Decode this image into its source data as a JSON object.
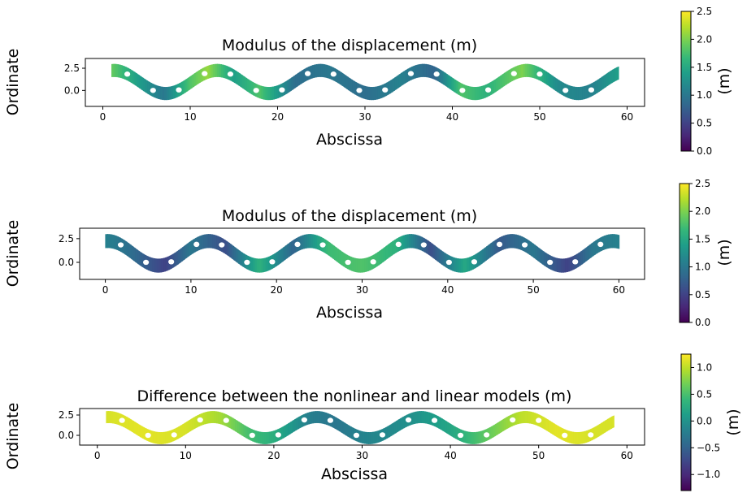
{
  "colormap": {
    "name": "viridis",
    "stops": [
      "#440154",
      "#482878",
      "#3e4989",
      "#31688e",
      "#26828e",
      "#1f9e89",
      "#35b779",
      "#6ece58",
      "#b5de2b",
      "#fde725"
    ]
  },
  "chart_data": [
    {
      "type": "heatmap",
      "title": "Modulus of the displacement (m)",
      "xlabel": "Abscissa",
      "ylabel": "Ordinate",
      "xlim": [
        -2,
        62
      ],
      "ylim": [
        -1.8,
        3.6
      ],
      "xticks": [
        0,
        10,
        20,
        30,
        40,
        50,
        60
      ],
      "yticks": [
        0.0,
        2.5
      ],
      "xtick_labels": [
        "0",
        "10",
        "20",
        "30",
        "40",
        "50",
        "60"
      ],
      "ytick_labels": [
        "0.0",
        "2.5"
      ],
      "colorbar": {
        "label": "(m)",
        "min": 0.0,
        "max": 2.5,
        "ticks": [
          0.0,
          0.5,
          1.0,
          1.5,
          2.0,
          2.5
        ],
        "tick_labels": [
          "0.0",
          "0.5",
          "1.0",
          "1.5",
          "2.0",
          "2.5"
        ]
      },
      "beam_x_range": [
        1,
        59
      ],
      "field_profile": {
        "x": [
          1,
          4,
          7,
          10,
          12,
          15,
          18,
          22,
          26,
          30,
          34,
          38,
          41,
          44,
          48,
          52,
          56,
          59
        ],
        "value": [
          1.9,
          1.4,
          1.0,
          1.8,
          2.1,
          1.4,
          1.8,
          0.9,
          1.0,
          0.9,
          1.1,
          0.8,
          1.8,
          1.6,
          2.0,
          1.2,
          1.1,
          1.4
        ]
      }
    },
    {
      "type": "heatmap",
      "title": "Modulus of the displacement (m)",
      "xlabel": "Abscissa",
      "ylabel": "Ordinate",
      "xlim": [
        -3,
        63
      ],
      "ylim": [
        -1.8,
        3.6
      ],
      "xticks": [
        0,
        10,
        20,
        30,
        40,
        50,
        60
      ],
      "yticks": [
        0.0,
        2.5
      ],
      "xtick_labels": [
        "0",
        "10",
        "20",
        "30",
        "40",
        "50",
        "60"
      ],
      "ytick_labels": [
        "0.0",
        "2.5"
      ],
      "colorbar": {
        "label": "(m)",
        "min": 0.0,
        "max": 2.5,
        "ticks": [
          0.0,
          0.5,
          1.0,
          1.5,
          2.0,
          2.5
        ],
        "tick_labels": [
          "0.0",
          "0.5",
          "1.0",
          "1.5",
          "2.0",
          "2.5"
        ]
      },
      "beam_x_range": [
        0,
        60
      ],
      "field_profile": {
        "x": [
          0,
          3,
          7,
          10,
          14,
          18,
          22,
          26,
          30,
          34,
          38,
          42,
          46,
          50,
          54,
          57,
          60
        ],
        "value": [
          1.1,
          0.9,
          0.5,
          1.0,
          0.6,
          1.6,
          0.8,
          1.7,
          1.8,
          1.6,
          0.6,
          1.5,
          0.7,
          1.0,
          0.5,
          1.0,
          1.1
        ]
      }
    },
    {
      "type": "heatmap",
      "title": "Difference between the nonlinear and linear models (m)",
      "xlabel": "Abscissa",
      "ylabel": "Ordinate",
      "xlim": [
        -2,
        62
      ],
      "ylim": [
        -1.2,
        3.3
      ],
      "xticks": [
        0,
        10,
        20,
        30,
        40,
        50,
        60
      ],
      "yticks": [
        0.0,
        2.5
      ],
      "xtick_labels": [
        "0",
        "10",
        "20",
        "30",
        "40",
        "50",
        "60"
      ],
      "ytick_labels": [
        "0.0",
        "2.5"
      ],
      "colorbar": {
        "label": "(m)",
        "min": -1.3,
        "max": 1.25,
        "ticks": [
          -1.0,
          -0.5,
          0.0,
          0.5,
          1.0
        ],
        "tick_labels": [
          "−1.0",
          "−0.5",
          "0.0",
          "0.5",
          "1.0"
        ]
      },
      "beam_x_range": [
        1,
        58.5
      ],
      "field_profile": {
        "x": [
          1,
          5,
          10,
          14,
          17,
          20,
          24,
          27,
          30,
          33,
          36,
          40,
          44,
          48,
          52,
          56,
          58.5
        ],
        "value": [
          1.1,
          1.15,
          1.1,
          0.9,
          0.5,
          0.3,
          -0.2,
          -0.3,
          -0.15,
          -0.1,
          0.0,
          0.2,
          0.6,
          1.0,
          1.15,
          1.1,
          1.1
        ]
      }
    }
  ]
}
